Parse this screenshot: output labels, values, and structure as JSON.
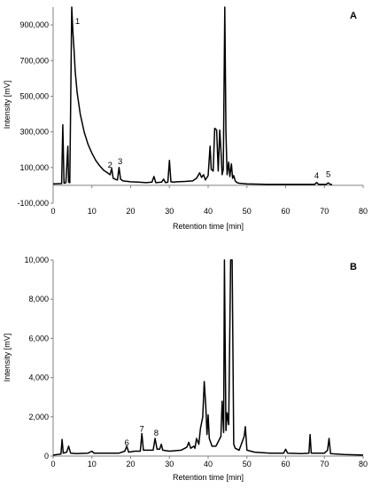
{
  "chart_data": [
    {
      "type": "line",
      "panel_label": "A",
      "xlabel": "Retention time [min]",
      "ylabel": "Intensity [mV]",
      "xlim": [
        0,
        80
      ],
      "ylim": [
        -100000,
        1000000
      ],
      "xticks": [
        0,
        10,
        20,
        30,
        40,
        50,
        60,
        70,
        80
      ],
      "yticks": [
        -100000,
        100000,
        300000,
        500000,
        700000,
        900000
      ],
      "ytick_labels": [
        "-100,000",
        "100,000",
        "300,000",
        "500,000",
        "700,000",
        "900,000"
      ],
      "grid": false,
      "series": [
        {
          "color": "#000000",
          "x": [
            0,
            2.2,
            2.5,
            2.8,
            3.3,
            3.8,
            4.0,
            4.3,
            4.8,
            5.1,
            5.4,
            5.7,
            6.2,
            7,
            8,
            9,
            10,
            11,
            12,
            13,
            14,
            14.7,
            15.1,
            15.5,
            16,
            16.6,
            17.0,
            17.4,
            18,
            20,
            22,
            24,
            25.5,
            26,
            26.5,
            28,
            28.5,
            29,
            29.6,
            30.0,
            30.4,
            31,
            32,
            34,
            36,
            37,
            37.8,
            38.3,
            38.8,
            39.3,
            40.0,
            40.5,
            40.8,
            41.3,
            41.7,
            42.2,
            42.6,
            43.0,
            43.3,
            43.6,
            43.9,
            44.3,
            44.6,
            44.9,
            45.3,
            45.6,
            46.0,
            46.3,
            46.6,
            47.0,
            47.5,
            48,
            49,
            50,
            55,
            60,
            65,
            67.5,
            68,
            68.5,
            70.5,
            71,
            71.5,
            72
          ],
          "y": [
            8000,
            10000,
            340000,
            12000,
            15000,
            220000,
            18000,
            15000,
            1000000,
            860000,
            760000,
            640000,
            520000,
            400000,
            300000,
            230000,
            180000,
            140000,
            110000,
            85000,
            70000,
            60000,
            95000,
            40000,
            35000,
            30000,
            100000,
            35000,
            25000,
            20000,
            18000,
            15000,
            18000,
            50000,
            15000,
            18000,
            35000,
            15000,
            18000,
            140000,
            20000,
            18000,
            20000,
            22000,
            25000,
            40000,
            70000,
            45000,
            60000,
            30000,
            55000,
            220000,
            90000,
            80000,
            320000,
            310000,
            80000,
            310000,
            200000,
            60000,
            90000,
            1000000,
            300000,
            60000,
            130000,
            50000,
            120000,
            40000,
            55000,
            25000,
            15000,
            12000,
            10000,
            8000,
            6000,
            6000,
            6000,
            6000,
            16000,
            6000,
            6000,
            14000,
            6000,
            5000
          ]
        }
      ],
      "annotations": [
        {
          "text": "1",
          "x": 6.3,
          "y": 905000
        },
        {
          "text": "2",
          "x": 14.7,
          "y": 98000
        },
        {
          "text": "3",
          "x": 17.3,
          "y": 118000
        },
        {
          "text": "4",
          "x": 68.0,
          "y": 40000
        },
        {
          "text": "5",
          "x": 71.0,
          "y": 48000
        }
      ]
    },
    {
      "type": "line",
      "panel_label": "B",
      "xlabel": "Retention time [min]",
      "ylabel": "Intensity [mV]",
      "xlim": [
        0,
        80
      ],
      "ylim": [
        0,
        10000
      ],
      "xticks": [
        0,
        10,
        20,
        30,
        40,
        50,
        60,
        70,
        80
      ],
      "yticks": [
        0,
        2000,
        4000,
        6000,
        8000,
        10000
      ],
      "ytick_labels": [
        "0",
        "2,000",
        "4,000",
        "6,000",
        "8,000",
        "10,000"
      ],
      "grid": false,
      "series": [
        {
          "color": "#000000",
          "x": [
            0,
            2,
            2.3,
            2.6,
            3.5,
            4.0,
            4.5,
            6,
            9,
            10,
            10.5,
            12,
            15,
            17,
            18.5,
            19,
            19.5,
            21,
            22.5,
            22.9,
            23.3,
            24,
            25.8,
            26.3,
            26.8,
            27.5,
            27.9,
            28.3,
            30,
            33,
            34.5,
            35,
            35.5,
            36.3,
            36.6,
            37.0,
            37.6,
            38.0,
            38.6,
            39.0,
            39.4,
            39.7,
            40.0,
            40.3,
            41,
            42,
            43.3,
            43.6,
            44.0,
            44.2,
            44.6,
            44.9,
            45.3,
            45.8,
            46.2,
            46.6,
            47,
            48,
            49.3,
            49.6,
            50,
            52,
            56,
            59.5,
            60,
            60.5,
            64,
            66,
            66.3,
            66.6,
            70,
            70.8,
            71.2,
            71.6,
            75,
            80
          ],
          "y": [
            50,
            100,
            850,
            150,
            200,
            500,
            150,
            120,
            150,
            250,
            150,
            150,
            150,
            150,
            250,
            500,
            200,
            250,
            250,
            1150,
            300,
            300,
            300,
            900,
            350,
            350,
            600,
            300,
            250,
            300,
            450,
            700,
            400,
            500,
            400,
            900,
            600,
            1400,
            2000,
            3800,
            2500,
            1100,
            2100,
            900,
            500,
            500,
            1000,
            2800,
            1200,
            10000,
            1300,
            2200,
            1600,
            10000,
            10000,
            600,
            400,
            300,
            1000,
            1500,
            300,
            200,
            150,
            150,
            350,
            150,
            120,
            150,
            1100,
            150,
            150,
            300,
            900,
            120,
            80,
            50
          ]
        }
      ],
      "annotations": [
        {
          "text": "6",
          "x": 19.0,
          "y": 550
        },
        {
          "text": "7",
          "x": 22.9,
          "y": 1250
        },
        {
          "text": "8",
          "x": 26.6,
          "y": 1050
        }
      ]
    }
  ]
}
